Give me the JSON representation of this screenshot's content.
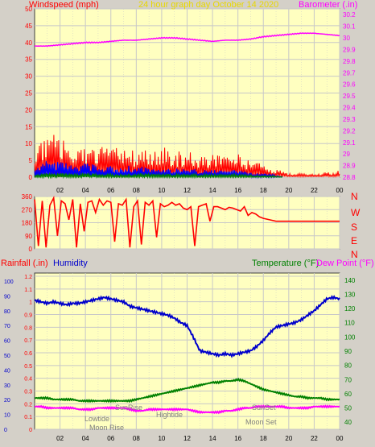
{
  "colors": {
    "background": "#d4d0c8",
    "plot_area": "#ffffc0",
    "grid": "#c8c8c8",
    "frame": "#404040",
    "wind_label": "#ff0000",
    "wind_gust": "#ff0000",
    "wind_avg": "#0000ff",
    "wind_low": "#008000",
    "barometer": "#ff00ff",
    "title": "#e8d800",
    "direction": "#ff0000",
    "rain_label": "#ff0000",
    "humidity": "#0000cc",
    "temperature": "#008000",
    "dew_point": "#ff00ff",
    "axis_text": "#000000",
    "sun_moon_text": "#808080"
  },
  "chart_data": [
    {
      "type": "line",
      "panel": "wind-barometer",
      "title": "24 hour graph day   October 14 2020",
      "left_axis_label": "Windspeed (mph)",
      "right_axis_label": "Barometer (.in)",
      "x_ticks": [
        "02",
        "04",
        "06",
        "08",
        "10",
        "12",
        "14",
        "16",
        "18",
        "20",
        "22",
        "00"
      ],
      "y_left_ticks": [
        0,
        5,
        10,
        15,
        20,
        25,
        30,
        35,
        40,
        45,
        50
      ],
      "ylim_left": [
        0,
        50
      ],
      "y_right_ticks": [
        28.8,
        28.9,
        29.0,
        29.1,
        29.2,
        29.3,
        29.4,
        29.5,
        29.6,
        29.7,
        29.8,
        29.9,
        30.0,
        30.1,
        30.2
      ],
      "y_right_tick_labels": [
        "28.8",
        "28.9",
        "29",
        "29.1",
        "29.2",
        "29.3",
        "29.4",
        "29.5",
        "29.6",
        "29.7",
        "29.8",
        "29.9",
        "30",
        "30.1",
        "30.2"
      ],
      "ylim_right": [
        28.8,
        30.25
      ],
      "grid": true,
      "series": [
        {
          "key": "gust",
          "axis": "left",
          "style": "spikes",
          "x": [
            0,
            0.5,
            1,
            1.5,
            2,
            2.5,
            3,
            3.5,
            4,
            4.5,
            5,
            5.5,
            6,
            6.5,
            7,
            7.5,
            8,
            8.5,
            9,
            9.5,
            10,
            10.5,
            11,
            11.5,
            12,
            12.5,
            13,
            13.5,
            14,
            14.5,
            15,
            15.5,
            16,
            16.5,
            17,
            17.5,
            18,
            18.5,
            19,
            19.5,
            20,
            20.5,
            21,
            21.5,
            22,
            22.5,
            23,
            23.5,
            24
          ],
          "values": [
            9,
            11,
            10,
            12,
            9,
            10,
            8,
            9,
            8,
            8,
            7,
            9,
            7,
            8,
            7,
            7,
            7,
            9,
            6,
            7,
            8,
            8,
            6,
            7,
            7,
            6,
            5,
            6,
            7,
            6,
            6,
            7,
            6,
            5,
            4,
            5,
            4,
            3,
            2,
            2,
            1,
            1,
            1,
            1,
            1,
            1,
            2,
            1,
            2
          ]
        },
        {
          "key": "average",
          "axis": "left",
          "style": "band",
          "x": [
            0,
            1,
            2,
            3,
            4,
            5,
            6,
            7,
            8,
            9,
            10,
            11,
            12,
            13,
            14,
            15,
            16,
            17,
            18,
            19,
            19.5
          ],
          "values": [
            3,
            3.5,
            3.5,
            3,
            3,
            2.5,
            2.5,
            2.5,
            2.5,
            2,
            2,
            2,
            2,
            1.5,
            1.5,
            1.5,
            1.5,
            1,
            1,
            0.5,
            0.3
          ]
        },
        {
          "key": "low",
          "axis": "left",
          "style": "band",
          "x": [
            0,
            2,
            4,
            6,
            8,
            10,
            12,
            14,
            16,
            18,
            19.5
          ],
          "values": [
            0.8,
            0.9,
            0.8,
            0.7,
            0.8,
            0.8,
            0.7,
            0.6,
            0.6,
            0.4,
            0.2
          ]
        },
        {
          "key": "barometer",
          "axis": "right",
          "style": "line",
          "x": [
            0,
            1,
            2,
            3,
            4,
            5,
            6,
            7,
            8,
            9,
            10,
            11,
            12,
            13,
            14,
            15,
            16,
            17,
            18,
            19,
            20,
            21,
            22,
            23,
            24
          ],
          "values": [
            29.93,
            29.93,
            29.94,
            29.95,
            29.96,
            29.96,
            29.97,
            29.98,
            29.98,
            29.99,
            30.0,
            30.0,
            29.99,
            29.98,
            29.97,
            29.98,
            29.98,
            29.99,
            30.01,
            30.02,
            30.03,
            30.04,
            30.04,
            30.03,
            30.02
          ]
        }
      ]
    },
    {
      "type": "scatter",
      "panel": "wind-direction",
      "x_ticks": [
        "02",
        "04",
        "06",
        "08",
        "10",
        "12",
        "14",
        "16",
        "18",
        "20",
        "22",
        "00"
      ],
      "y_ticks": [
        0,
        90,
        180,
        270,
        360
      ],
      "ylim": [
        0,
        360
      ],
      "side_labels": [
        "N",
        "W",
        "S",
        "E",
        "N"
      ],
      "grid": true,
      "series": [
        {
          "key": "direction",
          "style": "jagged-line",
          "x": [
            0,
            0.3,
            0.6,
            0.9,
            1.2,
            1.5,
            1.8,
            2.1,
            2.4,
            2.7,
            3,
            3.3,
            3.6,
            3.9,
            4.2,
            4.5,
            4.8,
            5.1,
            5.4,
            5.7,
            6,
            6.3,
            6.6,
            6.9,
            7.2,
            7.5,
            7.8,
            8.1,
            8.4,
            8.7,
            9,
            9.3,
            9.6,
            9.9,
            10.2,
            10.5,
            10.8,
            11.1,
            11.4,
            11.7,
            12,
            12.3,
            12.6,
            12.9,
            13.2,
            13.5,
            13.8,
            14.1,
            14.4,
            14.7,
            15,
            15.3,
            15.6,
            15.9,
            16.2,
            16.5,
            16.8,
            17.1,
            17.4,
            17.7,
            18,
            18.5,
            19,
            20,
            21,
            22,
            23,
            24
          ],
          "values": [
            340,
            20,
            330,
            10,
            300,
            350,
            90,
            330,
            310,
            200,
            340,
            10,
            310,
            120,
            320,
            330,
            250,
            340,
            300,
            330,
            320,
            50,
            310,
            300,
            340,
            10,
            290,
            330,
            30,
            320,
            300,
            330,
            80,
            310,
            290,
            300,
            320,
            300,
            310,
            280,
            270,
            290,
            20,
            290,
            300,
            310,
            190,
            290,
            290,
            280,
            270,
            285,
            280,
            270,
            260,
            290,
            230,
            250,
            240,
            220,
            210,
            200,
            190,
            190,
            190,
            190,
            190,
            190
          ]
        }
      ]
    },
    {
      "type": "line",
      "panel": "rain-humidity-temperature",
      "left_axis_labels": [
        "Rainfall (.in)",
        "Humidity"
      ],
      "right_axis_labels": [
        "Temperature (°F)",
        "Dew Point (°F)"
      ],
      "x_ticks": [
        "02",
        "04",
        "06",
        "08",
        "10",
        "12",
        "14",
        "16",
        "18",
        "20",
        "22",
        "00"
      ],
      "humidity_ticks": [
        0,
        10,
        20,
        30,
        40,
        50,
        60,
        70,
        80,
        90,
        100
      ],
      "rain_ticks": [
        0,
        0.1,
        0.2,
        0.3,
        0.4,
        0.5,
        0.6,
        0.7,
        0.8,
        0.9,
        1,
        1.1,
        1.2
      ],
      "rain_tick_labels": [
        "0",
        "0.1",
        "0.2",
        "0.3",
        "0.4",
        "0.5",
        "0.6",
        "0.7",
        "0.8",
        "0.9",
        "1",
        "1.1",
        "1.2"
      ],
      "temp_ticks": [
        40,
        50,
        60,
        70,
        80,
        90,
        100,
        110,
        120,
        130,
        140
      ],
      "ylim_humidity": [
        0,
        100
      ],
      "ylim_temperature": [
        35,
        145
      ],
      "grid": true,
      "series": [
        {
          "key": "humidity",
          "axis": "humidity",
          "x": [
            0,
            0.5,
            1,
            1.5,
            2,
            2.5,
            3,
            3.5,
            4,
            4.5,
            5,
            5.5,
            6,
            6.5,
            7,
            7.5,
            8,
            8.5,
            9,
            9.5,
            10,
            10.5,
            11,
            11.5,
            12,
            12.5,
            13,
            13.5,
            14,
            14.5,
            15,
            15.5,
            16,
            16.5,
            17,
            17.5,
            18,
            18.5,
            19,
            19.5,
            20,
            20.5,
            21,
            21.5,
            22,
            22.5,
            23,
            23.5,
            24
          ],
          "values": [
            87,
            86,
            85,
            86,
            85,
            84,
            85,
            85,
            86,
            87,
            88,
            89,
            88,
            87,
            86,
            83,
            82,
            81,
            80,
            79,
            78,
            77,
            75,
            72,
            70,
            62,
            53,
            52,
            51,
            50,
            51,
            50,
            51,
            52,
            53,
            56,
            60,
            65,
            69,
            70,
            71,
            72,
            74,
            77,
            80,
            84,
            88,
            89,
            88
          ]
        },
        {
          "key": "temperature",
          "axis": "temperature",
          "x": [
            0,
            0.5,
            1,
            1.5,
            2,
            2.5,
            3,
            3.5,
            4,
            4.5,
            5,
            5.5,
            6,
            6.5,
            7,
            7.5,
            8,
            8.5,
            9,
            9.5,
            10,
            10.5,
            11,
            11.5,
            12,
            12.5,
            13,
            13.5,
            14,
            14.5,
            15,
            15.5,
            16,
            16.5,
            17,
            17.5,
            18,
            18.5,
            19,
            19.5,
            20,
            20.5,
            21,
            21.5,
            22,
            22.5,
            23,
            23.5,
            24
          ],
          "values": [
            57,
            57,
            57,
            56,
            56,
            56,
            56,
            55,
            55,
            55,
            55,
            55,
            55,
            55,
            55,
            55,
            56,
            57,
            58,
            59,
            60,
            61,
            62,
            63,
            64,
            65,
            66,
            67,
            68,
            68,
            69,
            69,
            70,
            69,
            67,
            65,
            63,
            62,
            61,
            60,
            59,
            58,
            58,
            57,
            57,
            57,
            56,
            56,
            56
          ]
        },
        {
          "key": "dew_point",
          "axis": "temperature",
          "x": [
            0,
            0.5,
            1,
            1.5,
            2,
            2.5,
            3,
            3.5,
            4,
            4.5,
            5,
            5.5,
            6,
            6.5,
            7,
            7.5,
            8,
            8.5,
            9,
            9.5,
            10,
            10.5,
            11,
            11.5,
            12,
            12.5,
            13,
            13.5,
            14,
            14.5,
            15,
            15.5,
            16,
            16.5,
            17,
            17.5,
            18,
            18.5,
            19,
            19.5,
            20,
            20.5,
            21,
            21.5,
            22,
            22.5,
            23,
            23.5,
            24
          ],
          "values": [
            51,
            51,
            50,
            50,
            50,
            50,
            50,
            49,
            49,
            49,
            50,
            50,
            50,
            50,
            50,
            49,
            48,
            48,
            49,
            49,
            49,
            49,
            49,
            49,
            49,
            48,
            47,
            47,
            47,
            47,
            48,
            48,
            49,
            50,
            50,
            51,
            51,
            51,
            51,
            51,
            50,
            50,
            50,
            50,
            51,
            51,
            51,
            51,
            51
          ]
        }
      ],
      "annotations": [
        {
          "label": "SunRise",
          "hour": 7.3,
          "row": "top"
        },
        {
          "label": "Hightide",
          "hour": 10.7,
          "row": "middle"
        },
        {
          "label": "Lowtide",
          "hour": 4.4,
          "row": "bottom"
        },
        {
          "label": "Moon Rise",
          "hour": 5.1,
          "row": "lowest"
        },
        {
          "label": "SunSet",
          "hour": 18.2,
          "row": "top"
        },
        {
          "label": "Moon Set",
          "hour": 17.9,
          "row": "low-right"
        }
      ]
    }
  ]
}
